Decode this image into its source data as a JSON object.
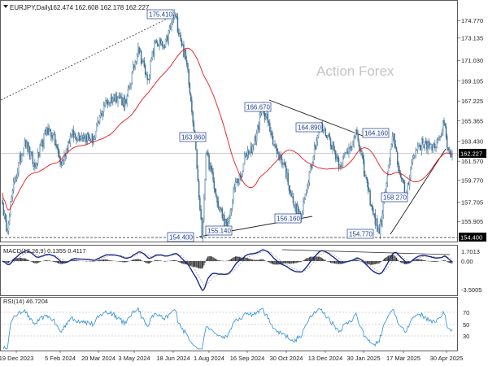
{
  "chart_data": {
    "type": "candlestick",
    "header": {
      "symbol_label": "EURJPY,Daily",
      "ohlc": "162.474 162.608 162.178 162.227"
    },
    "watermark": "Action Forex",
    "price_axis_ticks": [
      "174.770",
      "173.135",
      "171.030",
      "169.105",
      "167.225",
      "165.365",
      "163.430",
      "161.570",
      "159.770",
      "157.705",
      "155.905",
      "154.400"
    ],
    "current_price": "162.227",
    "low_marker": "154.400",
    "date_ticks": [
      "19 Dec 2023",
      "5 Feb 2024",
      "20 Mar 2024",
      "3 May 2024",
      "18 Jun 2024",
      "1 Aug 2024",
      "16 Sep 2024",
      "30 Oct 2024",
      "13 Dec 2024",
      "30 Jan 2025",
      "17 Mar 2025",
      "30 Apr 2025"
    ],
    "price_annotations": [
      "175.410",
      "163.860",
      "166.670",
      "164.890",
      "164.160",
      "155.140",
      "154.400",
      "156.160",
      "158.270",
      "154.770"
    ],
    "price_anchors": [
      {
        "t": 0,
        "p": 157.6
      },
      {
        "t": 4,
        "p": 155.0
      },
      {
        "t": 10,
        "p": 158.8
      },
      {
        "t": 22,
        "p": 163.5
      },
      {
        "t": 32,
        "p": 161.0
      },
      {
        "t": 44,
        "p": 164.6
      },
      {
        "t": 50,
        "p": 164.0
      },
      {
        "t": 58,
        "p": 161.2
      },
      {
        "t": 67,
        "p": 163.9
      },
      {
        "t": 80,
        "p": 164.0
      },
      {
        "t": 90,
        "p": 163.6
      },
      {
        "t": 100,
        "p": 166.8
      },
      {
        "t": 112,
        "p": 167.8
      },
      {
        "t": 122,
        "p": 167.0
      },
      {
        "t": 134,
        "p": 172.3
      },
      {
        "t": 143,
        "p": 169.2
      },
      {
        "t": 151,
        "p": 172.8
      },
      {
        "t": 160,
        "p": 172.2
      },
      {
        "t": 166,
        "p": 174.2
      },
      {
        "t": 170,
        "p": 175.41
      },
      {
        "t": 175,
        "p": 173.5
      },
      {
        "t": 183,
        "p": 170.2
      },
      {
        "t": 190,
        "p": 163.8
      },
      {
        "t": 195,
        "p": 157.0
      },
      {
        "t": 197,
        "p": 154.4
      },
      {
        "t": 201,
        "p": 162.3
      },
      {
        "t": 205,
        "p": 161.0
      },
      {
        "t": 212,
        "p": 157.7
      },
      {
        "t": 222,
        "p": 155.14
      },
      {
        "t": 230,
        "p": 159.6
      },
      {
        "t": 236,
        "p": 160.0
      },
      {
        "t": 240,
        "p": 162.3
      },
      {
        "t": 248,
        "p": 163.0
      },
      {
        "t": 257,
        "p": 166.67
      },
      {
        "t": 266,
        "p": 164.0
      },
      {
        "t": 271,
        "p": 162.3
      },
      {
        "t": 278,
        "p": 161.3
      },
      {
        "t": 287,
        "p": 157.6
      },
      {
        "t": 295,
        "p": 156.16
      },
      {
        "t": 303,
        "p": 160.6
      },
      {
        "t": 313,
        "p": 164.89
      },
      {
        "t": 323,
        "p": 163.7
      },
      {
        "t": 333,
        "p": 161.2
      },
      {
        "t": 342,
        "p": 162.8
      },
      {
        "t": 350,
        "p": 164.1
      },
      {
        "t": 358,
        "p": 160.2
      },
      {
        "t": 366,
        "p": 156.6
      },
      {
        "t": 372,
        "p": 154.77
      },
      {
        "t": 380,
        "p": 160.2
      },
      {
        "t": 386,
        "p": 164.16
      },
      {
        "t": 392,
        "p": 160.4
      },
      {
        "t": 398,
        "p": 158.27
      },
      {
        "t": 404,
        "p": 161.4
      },
      {
        "t": 410,
        "p": 163.0
      },
      {
        "t": 418,
        "p": 163.3
      },
      {
        "t": 424,
        "p": 162.6
      },
      {
        "t": 430,
        "p": 163.6
      },
      {
        "t": 436,
        "p": 165.1
      },
      {
        "t": 440,
        "p": 162.6
      },
      {
        "t": 444,
        "p": 162.227
      }
    ],
    "macd": {
      "label": "MACD(12,26,9) 0.1355 0.4117",
      "ticks": [
        "1.7013",
        "0.00",
        "-3.5005"
      ]
    },
    "rsi": {
      "label": "RSI(14) 46.7204",
      "ticks": [
        "70",
        "50",
        "30"
      ]
    }
  }
}
